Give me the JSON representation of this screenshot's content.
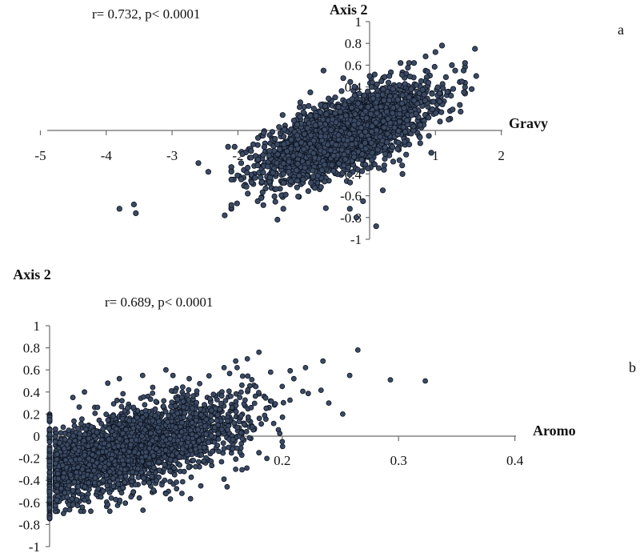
{
  "chart_data": [
    {
      "type": "scatter",
      "panel_label": "a",
      "annotation": "r= 0.732,  p< 0.0001",
      "xlabel": "Gravy",
      "ylabel": "Axis 2",
      "xlim": [
        -5,
        2
      ],
      "ylim": [
        -1,
        1
      ],
      "x_ticks": [
        "-5",
        "-4",
        "-3",
        "-2",
        "-1",
        "0",
        "1",
        "2"
      ],
      "y_ticks": [
        "-1",
        "-0.8",
        "-0.6",
        "-0.4",
        "-0.2",
        "0",
        "0.2",
        "0.4",
        "0.6",
        "0.8",
        "1"
      ],
      "grid": false,
      "point_color": "#3b4a63",
      "points": [
        [
          -3.8,
          -0.72
        ],
        [
          -3.58,
          -0.68
        ],
        [
          -3.55,
          -0.76
        ],
        [
          -2.6,
          -0.3
        ],
        [
          -2.45,
          -0.38
        ],
        [
          -2.2,
          -0.78
        ],
        [
          -2.15,
          -0.15
        ],
        [
          -2.05,
          -0.15
        ],
        [
          -1.95,
          -0.45
        ],
        [
          -1.85,
          -0.58
        ],
        [
          -1.95,
          -0.3
        ],
        [
          -1.8,
          -0.25
        ],
        [
          -1.7,
          -0.65
        ],
        [
          -1.4,
          -0.82
        ],
        [
          -0.9,
          0.35
        ],
        [
          -0.7,
          0.55
        ],
        [
          -0.4,
          0.48
        ],
        [
          0.1,
          -0.88
        ],
        [
          -0.2,
          -0.8
        ],
        [
          0.0,
          0.5
        ],
        [
          0.3,
          0.5
        ],
        [
          0.6,
          0.62
        ],
        [
          0.85,
          0.68
        ],
        [
          1.0,
          0.72
        ],
        [
          1.1,
          0.78
        ],
        [
          1.25,
          0.6
        ],
        [
          1.3,
          0.55
        ],
        [
          1.6,
          0.75
        ],
        [
          1.62,
          0.5
        ],
        [
          1.4,
          0.45
        ],
        [
          1.55,
          0.38
        ],
        [
          1.2,
          0.1
        ],
        [
          0.9,
          -0.05
        ],
        [
          0.5,
          -0.4
        ],
        [
          0.2,
          -0.55
        ],
        [
          -0.1,
          -0.65
        ],
        [
          -0.3,
          -0.72
        ]
      ]
    },
    {
      "type": "scatter",
      "panel_label": "b",
      "annotation": "r= 0.689,  p< 0.0001",
      "xlabel": "Aromo",
      "ylabel": "Axis 2",
      "xlim": [
        0,
        0.4
      ],
      "ylim": [
        -1,
        1
      ],
      "x_ticks": [
        "0.1",
        "0.2",
        "0.3",
        "0.4"
      ],
      "y_ticks": [
        "-1",
        "-0.8",
        "-0.6",
        "-0.4",
        "-0.2",
        "0",
        "0.2",
        "0.4",
        "0.6",
        "0.8",
        "1"
      ],
      "grid": false,
      "point_color": "#3b4a63",
      "points": [
        [
          0.265,
          0.78
        ],
        [
          0.293,
          0.51
        ],
        [
          0.323,
          0.5
        ],
        [
          0.252,
          0.2
        ],
        [
          0.258,
          0.55
        ],
        [
          0.24,
          0.3
        ],
        [
          0.235,
          0.68
        ],
        [
          0.22,
          0.62
        ],
        [
          0.21,
          0.52
        ],
        [
          0.2,
          0.45
        ],
        [
          0.19,
          0.58
        ],
        [
          0.18,
          0.76
        ],
        [
          0.17,
          0.7
        ],
        [
          0.15,
          0.62
        ],
        [
          0.16,
          0.68
        ],
        [
          0.12,
          0.52
        ],
        [
          0.1,
          0.6
        ],
        [
          0.08,
          0.55
        ],
        [
          0.06,
          0.52
        ],
        [
          0.05,
          0.48
        ],
        [
          0.03,
          0.4
        ],
        [
          0.02,
          0.35
        ],
        [
          0.015,
          -0.55
        ],
        [
          0.012,
          -0.7
        ],
        [
          0.02,
          -0.62
        ],
        [
          0.03,
          -0.58
        ],
        [
          0.05,
          -0.62
        ],
        [
          0.07,
          -0.55
        ],
        [
          0.1,
          -0.52
        ],
        [
          0.13,
          -0.45
        ],
        [
          0.16,
          -0.3
        ],
        [
          0.18,
          -0.15
        ],
        [
          0.2,
          -0.05
        ]
      ]
    }
  ]
}
